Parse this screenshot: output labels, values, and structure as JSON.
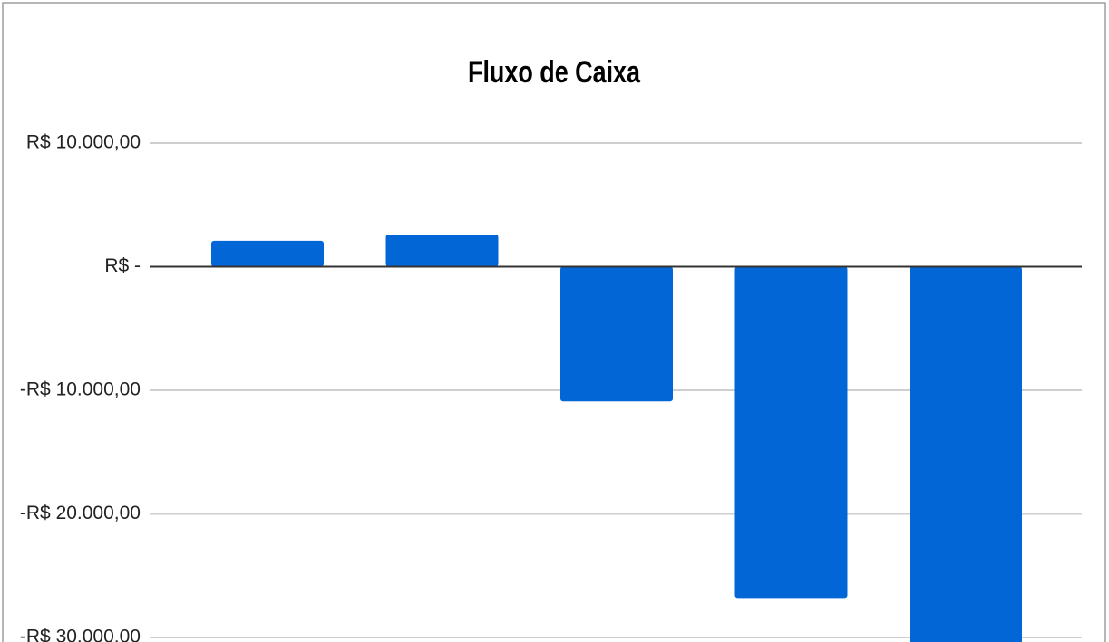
{
  "chart_data": {
    "type": "bar",
    "title": "Fluxo de Caixa",
    "categories": [
      null,
      null,
      null,
      null,
      null
    ],
    "values": [
      2100,
      2600,
      -10900,
      -26800,
      -31000
    ],
    "color": "#0366d6",
    "ylim": [
      -40000,
      10000
    ],
    "yticks": [
      {
        "value": 10000,
        "label": "R$  10.000,00"
      },
      {
        "value": 0,
        "label": "R$ -"
      },
      {
        "value": -10000,
        "label": "-R$  10.000,00"
      },
      {
        "value": -20000,
        "label": "-R$  20.000,00"
      },
      {
        "value": -30000,
        "label": "-R$  30.000,00"
      }
    ],
    "grid": true
  }
}
